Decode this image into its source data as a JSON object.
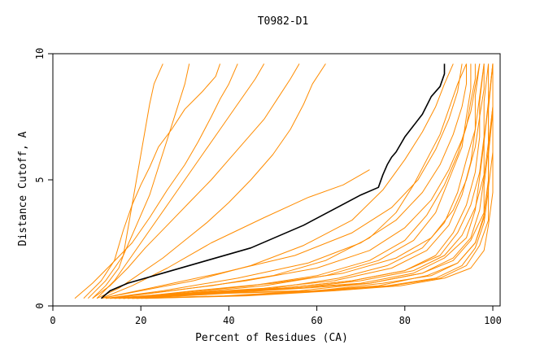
{
  "chart_data": {
    "type": "line",
    "title": "T0982-D1",
    "xlabel": "Percent of Residues (CA)",
    "ylabel": "Distance Cutoff, A",
    "xlim": [
      0,
      100
    ],
    "ylim": [
      0,
      10
    ],
    "xticks": [
      "0",
      "20",
      "40",
      "60",
      "80",
      "100"
    ],
    "yticks": [
      "0",
      "5",
      "10"
    ],
    "colors": {
      "highlight": "#000000",
      "other": "#ff8c00"
    },
    "grid": false,
    "highlight_series": {
      "x": [
        11,
        13,
        17,
        25,
        35,
        45,
        57,
        70,
        74,
        75,
        76,
        77,
        78,
        79,
        80,
        84,
        86,
        88,
        89,
        89
      ],
      "y": [
        0.3,
        0.6,
        0.9,
        1.3,
        1.8,
        2.3,
        3.2,
        4.4,
        4.7,
        5.2,
        5.6,
        5.9,
        6.1,
        6.4,
        6.7,
        7.6,
        8.3,
        8.7,
        9.2,
        9.6
      ]
    },
    "series": [
      {
        "x": [
          9,
          12,
          15,
          16,
          17,
          18,
          19,
          20,
          21,
          22,
          23,
          24,
          25
        ],
        "y": [
          0.3,
          0.8,
          1.5,
          2.0,
          3.0,
          4.0,
          5.0,
          6.0,
          7.0,
          8.0,
          8.8,
          9.2,
          9.6
        ]
      },
      {
        "x": [
          7,
          11,
          14,
          16,
          18,
          20,
          22,
          24,
          27,
          30,
          34,
          37,
          38
        ],
        "y": [
          0.3,
          1.0,
          1.8,
          3.0,
          4.0,
          4.8,
          5.5,
          6.3,
          7.0,
          7.8,
          8.5,
          9.1,
          9.6
        ]
      },
      {
        "x": [
          5,
          9,
          13,
          18,
          22,
          26,
          30,
          33,
          36,
          38,
          40,
          42
        ],
        "y": [
          0.3,
          0.9,
          1.6,
          2.5,
          3.5,
          4.6,
          5.6,
          6.5,
          7.5,
          8.2,
          8.8,
          9.6
        ]
      },
      {
        "x": [
          8,
          12,
          16,
          19,
          22,
          24,
          26,
          28,
          30,
          31
        ],
        "y": [
          0.3,
          1.0,
          2.0,
          3.2,
          4.4,
          5.5,
          6.6,
          7.7,
          8.8,
          9.6
        ]
      },
      {
        "x": [
          10,
          14,
          18,
          22,
          26,
          30,
          34,
          38,
          42,
          46,
          48
        ],
        "y": [
          0.3,
          1.0,
          2.0,
          3.0,
          4.0,
          5.0,
          6.0,
          7.0,
          8.0,
          9.0,
          9.6
        ]
      },
      {
        "x": [
          9,
          13,
          17,
          21,
          26,
          31,
          36,
          40,
          44,
          48,
          51,
          54,
          56
        ],
        "y": [
          0.3,
          0.8,
          1.5,
          2.3,
          3.2,
          4.1,
          5.0,
          5.8,
          6.6,
          7.4,
          8.2,
          9.0,
          9.6
        ]
      },
      {
        "x": [
          10,
          15,
          20,
          25,
          30,
          35,
          40,
          45,
          50,
          54,
          57,
          59,
          62
        ],
        "y": [
          0.3,
          0.7,
          1.3,
          1.9,
          2.6,
          3.3,
          4.1,
          5.0,
          6.0,
          7.0,
          8.0,
          8.8,
          9.6
        ]
      },
      {
        "x": [
          11,
          18,
          26,
          36,
          48,
          58,
          66,
          70,
          72
        ],
        "y": [
          0.3,
          0.8,
          1.5,
          2.5,
          3.5,
          4.3,
          4.8,
          5.2,
          5.4
        ]
      },
      {
        "x": [
          11,
          20,
          32,
          45,
          57,
          68,
          75,
          80,
          84,
          87,
          89,
          91
        ],
        "y": [
          0.3,
          0.6,
          1.0,
          1.6,
          2.4,
          3.4,
          4.6,
          5.8,
          6.9,
          7.9,
          8.8,
          9.6
        ]
      },
      {
        "x": [
          12,
          22,
          36,
          50,
          62,
          72,
          78,
          82,
          85,
          88,
          90,
          92,
          94
        ],
        "y": [
          0.3,
          0.5,
          0.8,
          1.2,
          1.8,
          2.7,
          3.7,
          4.8,
          5.8,
          6.8,
          7.8,
          8.8,
          9.6
        ]
      },
      {
        "x": [
          13,
          28,
          45,
          60,
          72,
          80,
          85,
          89,
          92,
          94,
          95,
          96,
          96
        ],
        "y": [
          0.3,
          0.5,
          0.8,
          1.2,
          1.8,
          2.6,
          3.6,
          4.8,
          6.0,
          7.1,
          8.1,
          9.0,
          9.6
        ]
      },
      {
        "x": [
          14,
          30,
          48,
          62,
          74,
          82,
          87,
          90,
          93,
          94,
          95,
          95
        ],
        "y": [
          0.3,
          0.5,
          0.8,
          1.2,
          1.8,
          2.6,
          3.7,
          5.0,
          6.3,
          7.5,
          8.6,
          9.6
        ]
      },
      {
        "x": [
          15,
          32,
          50,
          65,
          76,
          84,
          89,
          92,
          94,
          96,
          96,
          97
        ],
        "y": [
          0.3,
          0.5,
          0.7,
          1.1,
          1.6,
          2.3,
          3.3,
          4.5,
          5.8,
          7.0,
          8.3,
          9.6
        ]
      },
      {
        "x": [
          14,
          30,
          48,
          64,
          77,
          85,
          90,
          93,
          95,
          96,
          97,
          98
        ],
        "y": [
          0.3,
          0.5,
          0.7,
          1.0,
          1.5,
          2.2,
          3.2,
          4.4,
          5.7,
          7.0,
          8.3,
          9.6
        ]
      },
      {
        "x": [
          16,
          34,
          52,
          68,
          80,
          87,
          91,
          94,
          96,
          97,
          97,
          98
        ],
        "y": [
          0.3,
          0.5,
          0.7,
          1.0,
          1.4,
          2.0,
          2.9,
          4.0,
          5.3,
          6.7,
          8.1,
          9.6
        ]
      },
      {
        "x": [
          15,
          33,
          52,
          68,
          80,
          88,
          92,
          95,
          97,
          98,
          98,
          99
        ],
        "y": [
          0.3,
          0.5,
          0.7,
          1.0,
          1.4,
          2.0,
          2.9,
          4.0,
          5.3,
          6.7,
          8.1,
          9.6
        ]
      },
      {
        "x": [
          17,
          36,
          55,
          70,
          82,
          89,
          93,
          96,
          98,
          98,
          99,
          99
        ],
        "y": [
          0.3,
          0.5,
          0.7,
          1.0,
          1.4,
          2.0,
          2.8,
          3.9,
          5.2,
          6.6,
          8.1,
          9.6
        ]
      },
      {
        "x": [
          16,
          35,
          54,
          70,
          82,
          89,
          94,
          96,
          97,
          98,
          99,
          100
        ],
        "y": [
          0.3,
          0.5,
          0.7,
          0.9,
          1.3,
          1.9,
          2.7,
          3.8,
          5.1,
          6.5,
          8.0,
          9.6
        ]
      },
      {
        "x": [
          18,
          38,
          57,
          72,
          84,
          91,
          95,
          97,
          98,
          99,
          99,
          100
        ],
        "y": [
          0.3,
          0.5,
          0.7,
          0.9,
          1.3,
          1.9,
          2.7,
          3.8,
          5.1,
          6.5,
          8.0,
          9.6
        ]
      },
      {
        "x": [
          17,
          37,
          56,
          72,
          84,
          91,
          95,
          98,
          99,
          99,
          100,
          100
        ],
        "y": [
          0.3,
          0.5,
          0.6,
          0.9,
          1.3,
          1.8,
          2.6,
          3.7,
          5.0,
          6.4,
          7.9,
          9.6
        ]
      },
      {
        "x": [
          19,
          40,
          60,
          75,
          86,
          92,
          96,
          98,
          99,
          99,
          100,
          100
        ],
        "y": [
          0.3,
          0.5,
          0.6,
          0.9,
          1.2,
          1.7,
          2.5,
          3.6,
          4.9,
          6.3,
          7.9,
          9.6
        ]
      },
      {
        "x": [
          18,
          39,
          59,
          74,
          85,
          92,
          96,
          98,
          98,
          99,
          99,
          100
        ],
        "y": [
          0.3,
          0.4,
          0.6,
          0.8,
          1.2,
          1.7,
          2.5,
          3.5,
          4.8,
          6.2,
          7.8,
          9.6
        ]
      },
      {
        "x": [
          20,
          42,
          62,
          77,
          88,
          94,
          97,
          99,
          99,
          100,
          100,
          100
        ],
        "y": [
          0.3,
          0.4,
          0.6,
          0.8,
          1.1,
          1.6,
          2.4,
          3.4,
          4.7,
          6.1,
          7.7,
          9.6
        ]
      },
      {
        "x": [
          19,
          41,
          61,
          76,
          87,
          93,
          96,
          98,
          99,
          99,
          100,
          100
        ],
        "y": [
          0.3,
          0.4,
          0.6,
          0.8,
          1.1,
          1.6,
          2.3,
          3.3,
          4.6,
          6.0,
          7.7,
          9.6
        ]
      },
      {
        "x": [
          21,
          44,
          64,
          79,
          89,
          95,
          98,
          99,
          100,
          100,
          100,
          100
        ],
        "y": [
          0.3,
          0.4,
          0.6,
          0.8,
          1.1,
          1.5,
          2.2,
          3.2,
          4.5,
          5.9,
          7.6,
          9.6
        ]
      },
      {
        "x": [
          16,
          32,
          50,
          66,
          78,
          86,
          91,
          94,
          96,
          97,
          98,
          98
        ],
        "y": [
          0.3,
          0.6,
          0.9,
          1.3,
          1.9,
          2.7,
          3.8,
          5.0,
          6.3,
          7.5,
          8.6,
          9.6
        ]
      },
      {
        "x": [
          13,
          27,
          44,
          60,
          72,
          80,
          86,
          90,
          93,
          95,
          96,
          97
        ],
        "y": [
          0.3,
          0.6,
          1.0,
          1.5,
          2.2,
          3.1,
          4.2,
          5.4,
          6.6,
          7.7,
          8.7,
          9.6
        ]
      },
      {
        "x": [
          12,
          25,
          42,
          58,
          70,
          78,
          84,
          88,
          91,
          93,
          94,
          94
        ],
        "y": [
          0.3,
          0.6,
          1.1,
          1.7,
          2.5,
          3.4,
          4.5,
          5.6,
          6.8,
          7.9,
          8.8,
          9.6
        ]
      },
      {
        "x": [
          11,
          22,
          38,
          55,
          68,
          77,
          83,
          87,
          90,
          92,
          93
        ],
        "y": [
          0.3,
          0.7,
          1.3,
          2.0,
          2.9,
          3.9,
          5.0,
          6.2,
          7.4,
          8.5,
          9.6
        ]
      }
    ]
  }
}
